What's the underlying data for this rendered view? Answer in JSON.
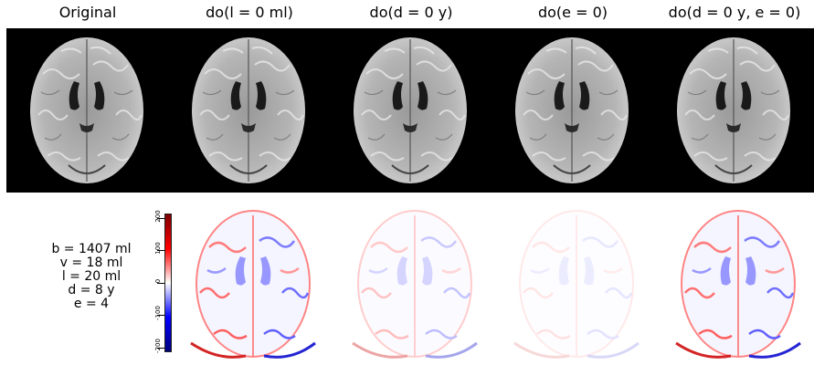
{
  "columns": [
    {
      "id": "orig",
      "title": "Original"
    },
    {
      "id": "l0",
      "title": "do(l = 0 ml)"
    },
    {
      "id": "d0",
      "title": "do(d = 0 y)"
    },
    {
      "id": "e0",
      "title": "do(e = 0)"
    },
    {
      "id": "de0",
      "title": "do(d = 0 y, e = 0)"
    }
  ],
  "params": {
    "b": "b = 1407 ml",
    "v": "v = 18 ml",
    "l": "l = 20 ml",
    "d": "d = 8 y",
    "e": "e = 4"
  },
  "colorbar": {
    "ticks": [
      "200",
      "100",
      "0",
      "-100",
      "-200"
    ],
    "range": [
      -200,
      200
    ],
    "colormap": "seismic",
    "colors": {
      "high": "#7f0000",
      "mid": "#ffffff",
      "low": "#00007f"
    }
  },
  "difference_intensity": [
    0.85,
    0.35,
    0.15,
    0.85
  ]
}
